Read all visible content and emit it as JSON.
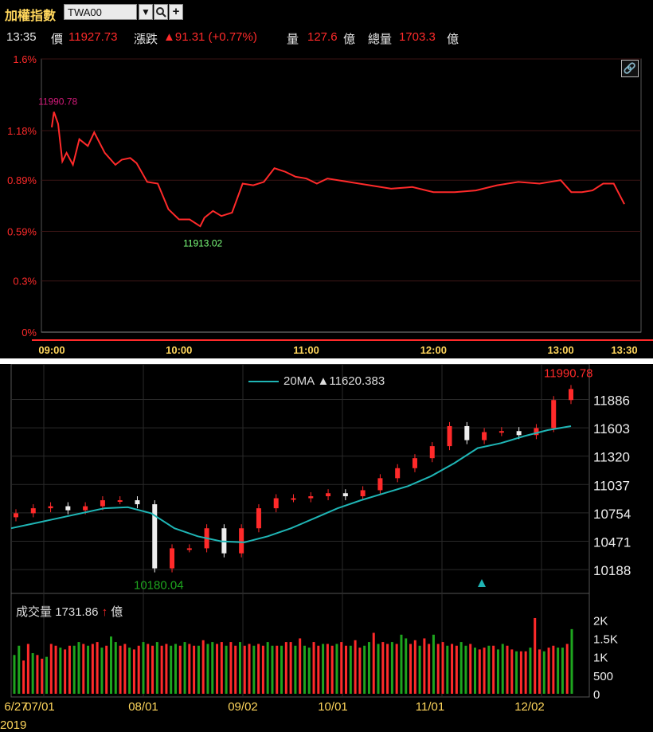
{
  "header": {
    "title": "加權指數",
    "symbol": "TWA00",
    "dropdown_icon": "chevron-down-icon",
    "search_icon": "search-icon",
    "add_icon": "plus-icon"
  },
  "quote": {
    "time": "13:35",
    "price_label": "價",
    "price": "11927.73",
    "change_label": "漲跌",
    "change": "▲91.31 (+0.77%)",
    "volume_label": "量",
    "volume": "127.6",
    "unit": "億",
    "total_label": "總量",
    "total": "1703.3"
  },
  "colors": {
    "up": "#ff2a2a",
    "down": "#1ea51e",
    "accent": "#ffd65c",
    "ma": "#1fb5b5",
    "high_label": "#d21a7a",
    "low_label": "#7cff7c"
  },
  "intraday": {
    "high_label": "11990.78",
    "low_label": "11913.02",
    "link_icon": "link-icon"
  },
  "daily": {
    "ma_label": "20MA",
    "ma_arrow": "▲",
    "ma_value": "11620.383",
    "high_label": "11990.78",
    "low_label": "10180.04",
    "marker_icon": "triangle-up-icon",
    "volume_label": "成交量",
    "volume_value": "1731.86",
    "volume_arrow": "↑",
    "volume_unit": "億",
    "year_label": "2019"
  },
  "chart_data": [
    {
      "type": "line",
      "ylim": [
        0,
        1.6
      ],
      "x_ticks": [
        "09:00",
        "10:00",
        "11:00",
        "12:00",
        "13:00",
        "13:30"
      ],
      "y_ticks": [
        "1.6%",
        "1.18%",
        "0.89%",
        "0.59%",
        "0.3%",
        "0%"
      ],
      "grid": true,
      "series": [
        {
          "time": [
            "09:00",
            "09:01",
            "09:03",
            "09:05",
            "09:07",
            "09:10",
            "09:13",
            "09:17",
            "09:20",
            "09:25",
            "09:30",
            "09:33",
            "09:37",
            "09:40",
            "09:45",
            "09:50",
            "09:55",
            "10:00",
            "10:05",
            "10:10",
            "10:12",
            "10:16",
            "10:20",
            "10:25",
            "10:30",
            "10:35",
            "10:40",
            "10:45",
            "10:50",
            "10:55",
            "11:00",
            "11:05",
            "11:10",
            "11:20",
            "11:30",
            "11:40",
            "11:50",
            "12:00",
            "12:10",
            "12:20",
            "12:30",
            "12:40",
            "12:50",
            "13:00",
            "13:05",
            "13:10",
            "13:15",
            "13:20",
            "13:25",
            "13:30"
          ],
          "values": [
            1.2,
            1.29,
            1.22,
            1.0,
            1.05,
            0.98,
            1.13,
            1.09,
            1.17,
            1.05,
            0.98,
            1.01,
            1.02,
            0.99,
            0.88,
            0.87,
            0.72,
            0.66,
            0.66,
            0.62,
            0.67,
            0.71,
            0.68,
            0.7,
            0.87,
            0.86,
            0.88,
            0.96,
            0.94,
            0.91,
            0.9,
            0.87,
            0.9,
            0.88,
            0.86,
            0.84,
            0.85,
            0.82,
            0.82,
            0.83,
            0.86,
            0.88,
            0.87,
            0.89,
            0.82,
            0.82,
            0.83,
            0.87,
            0.87,
            0.75
          ]
        }
      ]
    },
    {
      "type": "candlestick",
      "ylim": [
        9950,
        12200
      ],
      "y_ticks": [
        11886,
        11603,
        11320,
        11037,
        10754,
        10471,
        10188
      ],
      "x_ticks": [
        "6/27",
        "07/01",
        "08/01",
        "09/02",
        "10/01",
        "11/01",
        "12/02"
      ],
      "series": [
        {
          "name": "20MA",
          "values": [
            10600,
            10650,
            10700,
            10750,
            10800,
            10810,
            10750,
            10600,
            10520,
            10470,
            10460,
            10520,
            10600,
            10700,
            10800,
            10880,
            10950,
            11020,
            11120,
            11250,
            11400,
            11450,
            11520,
            11580,
            11620
          ]
        }
      ],
      "close": [
        10750,
        10800,
        10820,
        10780,
        10820,
        10880,
        10880,
        10840,
        10200,
        10400,
        10400,
        10600,
        10350,
        10600,
        10800,
        10900,
        10900,
        10920,
        10950,
        10920,
        10980,
        11100,
        11200,
        11300,
        11420,
        11620,
        11480,
        11560,
        11570,
        11530,
        11600,
        11880,
        11990
      ]
    },
    {
      "type": "bar",
      "ylim": [
        0,
        2200
      ],
      "y_ticks": [
        "2K",
        "1.5K",
        "1K",
        "500",
        "0"
      ],
      "values": [
        1050,
        1300,
        900,
        1350,
        1100,
        1050,
        950,
        1000,
        1350,
        1300,
        1250,
        1200,
        1300,
        1300,
        1400,
        1350,
        1300,
        1350,
        1400,
        1250,
        1300,
        1550,
        1400,
        1300,
        1350,
        1250,
        1200,
        1300,
        1400,
        1350,
        1300,
        1400,
        1300,
        1350,
        1300,
        1350,
        1300,
        1400,
        1350,
        1300,
        1300,
        1450,
        1350,
        1400,
        1350,
        1400,
        1300,
        1400,
        1300,
        1400,
        1300,
        1350,
        1300,
        1350,
        1300,
        1400,
        1300,
        1300,
        1300,
        1400,
        1400,
        1300,
        1500,
        1300,
        1250,
        1400,
        1300,
        1350,
        1350,
        1300,
        1350,
        1400,
        1300,
        1300,
        1450,
        1250,
        1300,
        1400,
        1650,
        1350,
        1400,
        1350,
        1400,
        1350,
        1600,
        1500,
        1350,
        1450,
        1300,
        1500,
        1350,
        1600,
        1350,
        1400,
        1300,
        1350,
        1300,
        1400,
        1300,
        1350,
        1250,
        1200,
        1250,
        1300,
        1300,
        1200,
        1350,
        1300,
        1200,
        1150,
        1150,
        1150,
        1250,
        2050,
        1200,
        1150,
        1250,
        1300,
        1250,
        1250,
        1350,
        1750
      ]
    }
  ]
}
